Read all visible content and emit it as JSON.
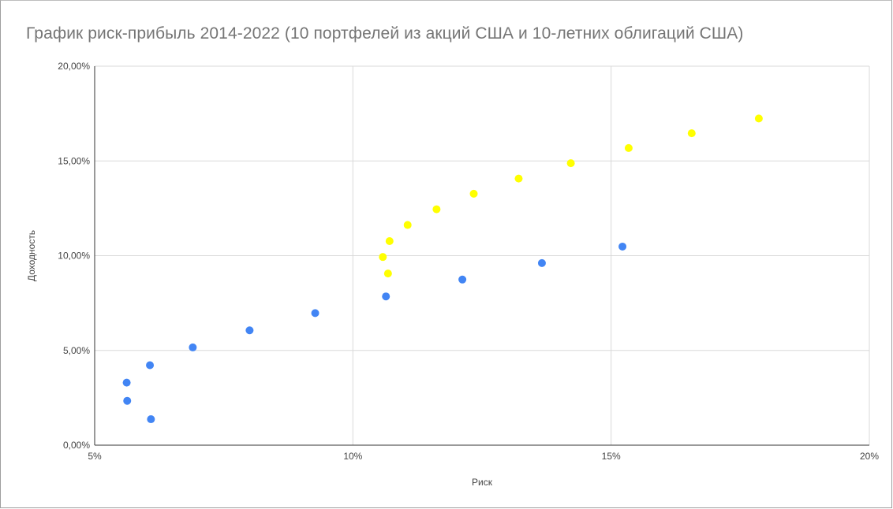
{
  "chart_data": {
    "type": "scatter",
    "title": "График риск-прибыль 2014-2022 (10 портфелей из акций США и 10-летних облигаций США)",
    "xlabel": "Риск",
    "ylabel": "Доходность",
    "xlim": [
      5,
      20
    ],
    "ylim": [
      0,
      20
    ],
    "x_ticks": [
      "5%",
      "10%",
      "15%",
      "20%"
    ],
    "y_ticks": [
      "0,00%",
      "5,00%",
      "10,00%",
      "15,00%",
      "20,00%"
    ],
    "grid": true,
    "legend": "none",
    "series": [
      {
        "color": "#4285f4",
        "points": [
          {
            "x": 5.62,
            "y": 3.3
          },
          {
            "x": 5.63,
            "y": 2.34
          },
          {
            "x": 6.07,
            "y": 4.22
          },
          {
            "x": 6.09,
            "y": 1.37
          },
          {
            "x": 6.9,
            "y": 5.16
          },
          {
            "x": 8.0,
            "y": 6.06
          },
          {
            "x": 9.27,
            "y": 6.97
          },
          {
            "x": 10.64,
            "y": 7.85
          },
          {
            "x": 12.12,
            "y": 8.74
          },
          {
            "x": 13.66,
            "y": 9.61
          },
          {
            "x": 15.22,
            "y": 10.48
          }
        ]
      },
      {
        "color": "#ffff00",
        "points": [
          {
            "x": 10.58,
            "y": 9.93
          },
          {
            "x": 10.68,
            "y": 9.06
          },
          {
            "x": 10.71,
            "y": 10.77
          },
          {
            "x": 11.06,
            "y": 11.62
          },
          {
            "x": 11.62,
            "y": 12.45
          },
          {
            "x": 12.34,
            "y": 13.27
          },
          {
            "x": 13.21,
            "y": 14.07
          },
          {
            "x": 14.22,
            "y": 14.88
          },
          {
            "x": 15.34,
            "y": 15.68
          },
          {
            "x": 16.56,
            "y": 16.46
          },
          {
            "x": 17.86,
            "y": 17.24
          }
        ]
      }
    ]
  }
}
